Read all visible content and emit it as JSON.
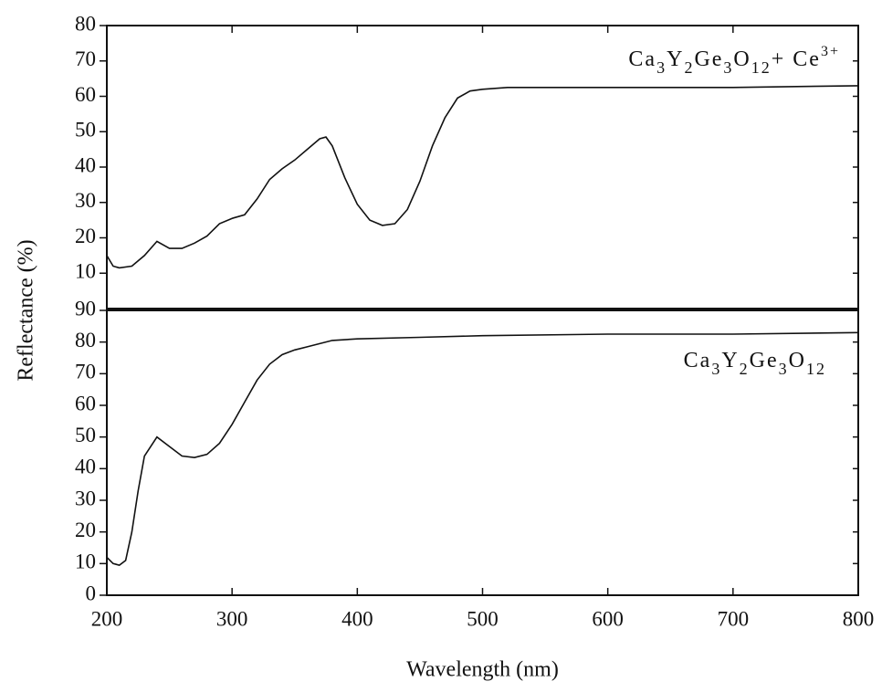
{
  "chart_data": [
    {
      "type": "line",
      "ylabel": "Reflectance (%)",
      "x": [
        200,
        205,
        210,
        220,
        230,
        240,
        250,
        260,
        270,
        280,
        290,
        300,
        310,
        320,
        330,
        340,
        350,
        360,
        370,
        375,
        380,
        390,
        400,
        410,
        420,
        430,
        440,
        450,
        460,
        470,
        480,
        490,
        500,
        520,
        550,
        600,
        700,
        800
      ],
      "series": [
        {
          "name": "Ca3Y2Ge3O12+ Ce3+",
          "color": "#111111",
          "values": [
            15,
            12,
            11.5,
            12,
            15,
            19,
            17,
            17,
            18.5,
            20.5,
            24,
            25.5,
            26.5,
            31,
            36.5,
            39.5,
            42,
            45,
            48,
            48.5,
            46,
            37,
            29.5,
            25,
            23.5,
            24,
            28,
            36,
            46,
            54,
            59.5,
            61.5,
            62,
            62.5,
            62.5,
            62.5,
            62.5,
            63
          ]
        }
      ],
      "xlim": [
        200,
        800
      ],
      "ylim": [
        0,
        80
      ],
      "yticks": [
        10,
        20,
        30,
        40,
        50,
        60,
        70,
        80
      ]
    },
    {
      "type": "line",
      "xlabel": "Wavelength (nm)",
      "x": [
        200,
        205,
        210,
        215,
        220,
        225,
        230,
        240,
        250,
        260,
        270,
        280,
        290,
        300,
        310,
        320,
        330,
        340,
        350,
        360,
        370,
        380,
        400,
        450,
        500,
        600,
        700,
        800
      ],
      "series": [
        {
          "name": "Ca3Y2Ge3O12",
          "color": "#111111",
          "values": [
            12,
            10,
            9.5,
            11,
            20,
            33,
            44,
            50,
            47,
            44,
            43.5,
            44.5,
            48,
            54,
            61,
            68,
            73,
            76,
            77.5,
            78.5,
            79.5,
            80.5,
            81,
            81.5,
            82,
            82.5,
            82.5,
            83
          ]
        }
      ],
      "xlim": [
        200,
        800
      ],
      "xticks": [
        200,
        300,
        400,
        500,
        600,
        700,
        800
      ],
      "ylim": [
        0,
        90
      ],
      "yticks": [
        0,
        10,
        20,
        30,
        40,
        50,
        60,
        70,
        80,
        90
      ]
    }
  ]
}
